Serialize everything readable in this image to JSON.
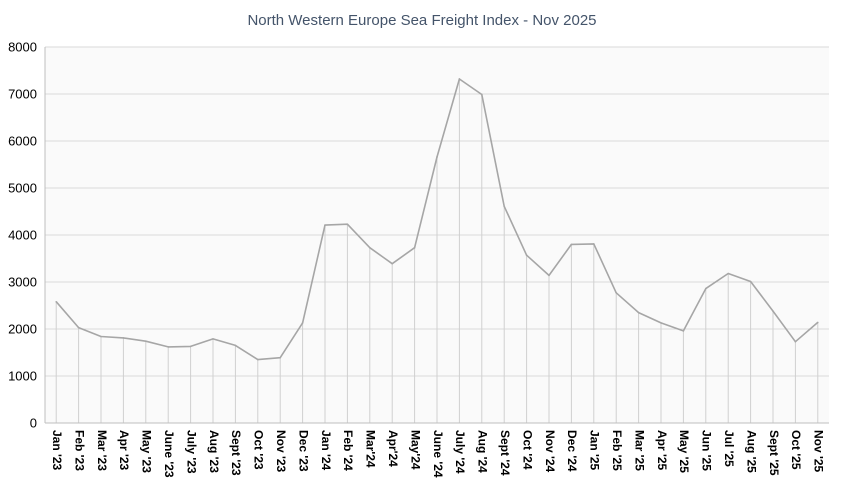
{
  "chart_data": {
    "type": "line",
    "title": "North Western Europe Sea Freight Index - Nov 2025",
    "xlabel": "",
    "ylabel": "",
    "ylim": [
      0,
      8000
    ],
    "yticks": [
      0,
      1000,
      2000,
      3000,
      4000,
      5000,
      6000,
      7000,
      8000
    ],
    "grid": true,
    "drop_lines": true,
    "line_color": "#a6a6a6",
    "grid_color": "#d9d9d9",
    "plot_background": "#fafafa",
    "categories": [
      "Jan '23",
      "Feb '23",
      "Mar '23",
      "Apr '23",
      "May '23",
      "June '23",
      "July '23",
      "Aug '23",
      "Sept '23",
      "Oct '23",
      "Nov '23",
      "Dec '23",
      "Jan '24",
      "Feb '24",
      "Mar'24",
      "Apr'24",
      "May'24",
      "June '24",
      "July '24",
      "Aug '24",
      "Sept '24",
      "Oct '24",
      "Nov '24",
      "Dec '24",
      "Jan '25",
      "Feb '25",
      "Mar '25",
      "Apr '25",
      "May '25",
      "Jun '25",
      "Jul '25",
      "Aug '25",
      "Sept '25",
      "Oct '25",
      "Nov '25"
    ],
    "values": [
      2580,
      2030,
      1840,
      1810,
      1740,
      1620,
      1630,
      1790,
      1650,
      1350,
      1390,
      2130,
      4210,
      4230,
      3730,
      3390,
      3730,
      5660,
      7320,
      6990,
      4610,
      3570,
      3140,
      3800,
      3810,
      2770,
      2350,
      2130,
      1960,
      2860,
      3180,
      3010,
      2380,
      1730,
      2140
    ]
  }
}
